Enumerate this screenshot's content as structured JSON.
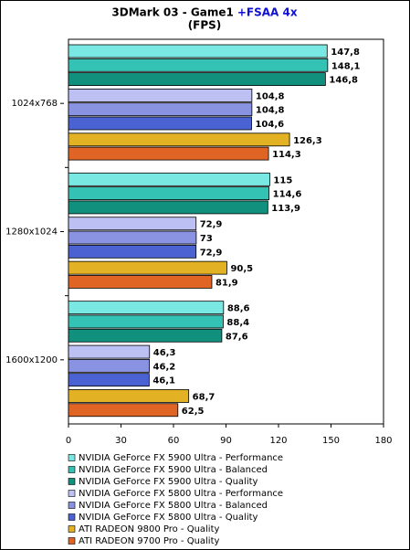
{
  "chart_data": {
    "type": "hbar",
    "title": "3DMark 03 - Game1",
    "title_highlight": "+FSAA 4x",
    "subtitle": "(FPS)",
    "categories": [
      "1024x768",
      "1280x1024",
      "1600x1200"
    ],
    "xlim": [
      0,
      180
    ],
    "xticks": [
      0,
      30,
      60,
      90,
      120,
      150,
      180
    ],
    "grid": false,
    "legend": "bottom",
    "series": [
      {
        "name": "NVIDIA GeForce FX 5900 Ultra - Performance",
        "color": "#7ae8e2",
        "values": [
          147.8,
          115,
          88.6
        ],
        "value_labels": [
          "147,8",
          "115",
          "88,6"
        ]
      },
      {
        "name": "NVIDIA GeForce FX 5900 Ultra - Balanced",
        "color": "#34c2b4",
        "values": [
          148.1,
          114.6,
          88.4
        ],
        "value_labels": [
          "148,1",
          "114,6",
          "88,4"
        ]
      },
      {
        "name": "NVIDIA GeForce FX 5900 Ultra - Quality",
        "color": "#12907e",
        "values": [
          146.8,
          113.9,
          87.6
        ],
        "value_labels": [
          "146,8",
          "113,9",
          "87,6"
        ]
      },
      {
        "name": "NVIDIA GeForce FX 5800 Ultra - Performance",
        "color": "#bcc0f2",
        "values": [
          104.8,
          72.9,
          46.3
        ],
        "value_labels": [
          "104,8",
          "72,9",
          "46,3"
        ]
      },
      {
        "name": "NVIDIA GeForce FX 5800 Ultra - Balanced",
        "color": "#8a92e2",
        "values": [
          104.8,
          73,
          46.2
        ],
        "value_labels": [
          "104,8",
          "73",
          "46,2"
        ]
      },
      {
        "name": "NVIDIA GeForce FX 5800 Ultra - Quality",
        "color": "#4a62d2",
        "values": [
          104.6,
          72.9,
          46.1
        ],
        "value_labels": [
          "104,6",
          "72,9",
          "46,1"
        ]
      },
      {
        "name": "ATI RADEON 9800 Pro - Quality",
        "color": "#e2b224",
        "values": [
          126.3,
          90.5,
          68.7
        ],
        "value_labels": [
          "126,3",
          "90,5",
          "68,7"
        ]
      },
      {
        "name": "ATI RADEON 9700 Pro - Quality",
        "color": "#e06424",
        "values": [
          114.3,
          81.9,
          62.5
        ],
        "value_labels": [
          "114,3",
          "81,9",
          "62,5"
        ]
      }
    ]
  }
}
